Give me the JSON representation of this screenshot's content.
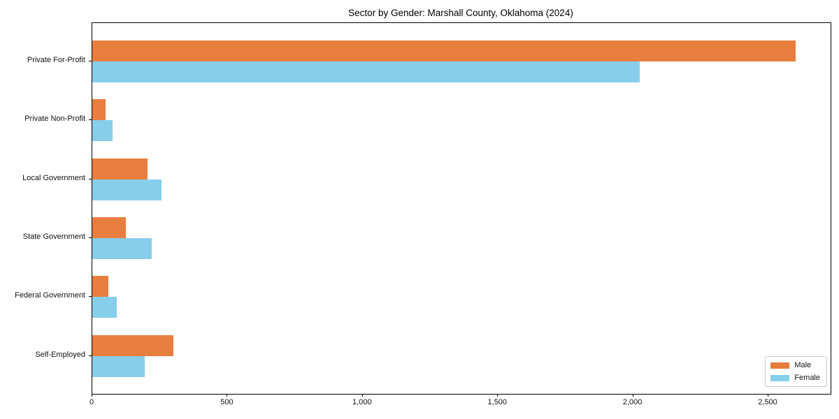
{
  "title": "Sector by Gender: Marshall County, Oklahoma (2024)",
  "chart_data": {
    "type": "bar",
    "orientation": "horizontal",
    "title": "Sector by Gender: Marshall County, Oklahoma (2024)",
    "categories": [
      "Private For-Profit",
      "Private Non-Profit",
      "Local Government",
      "State Government",
      "Federal Government",
      "Self-Employed"
    ],
    "series": [
      {
        "name": "Male",
        "color": "#e87e3d",
        "values": [
          2600,
          50,
          205,
          125,
          60,
          300
        ]
      },
      {
        "name": "Female",
        "color": "#87ceeb",
        "values": [
          2025,
          75,
          255,
          220,
          90,
          195
        ]
      }
    ],
    "xlabel": "",
    "ylabel": "",
    "xlim": [
      0,
      2730
    ],
    "xticks": [
      0,
      500,
      1000,
      1500,
      2000,
      2500
    ],
    "xtick_labels": [
      "0",
      "500",
      "1,000",
      "1,500",
      "2,000",
      "2,500"
    ],
    "grid": false,
    "legend": {
      "position": "lower right",
      "entries": [
        "Male",
        "Female"
      ]
    }
  }
}
